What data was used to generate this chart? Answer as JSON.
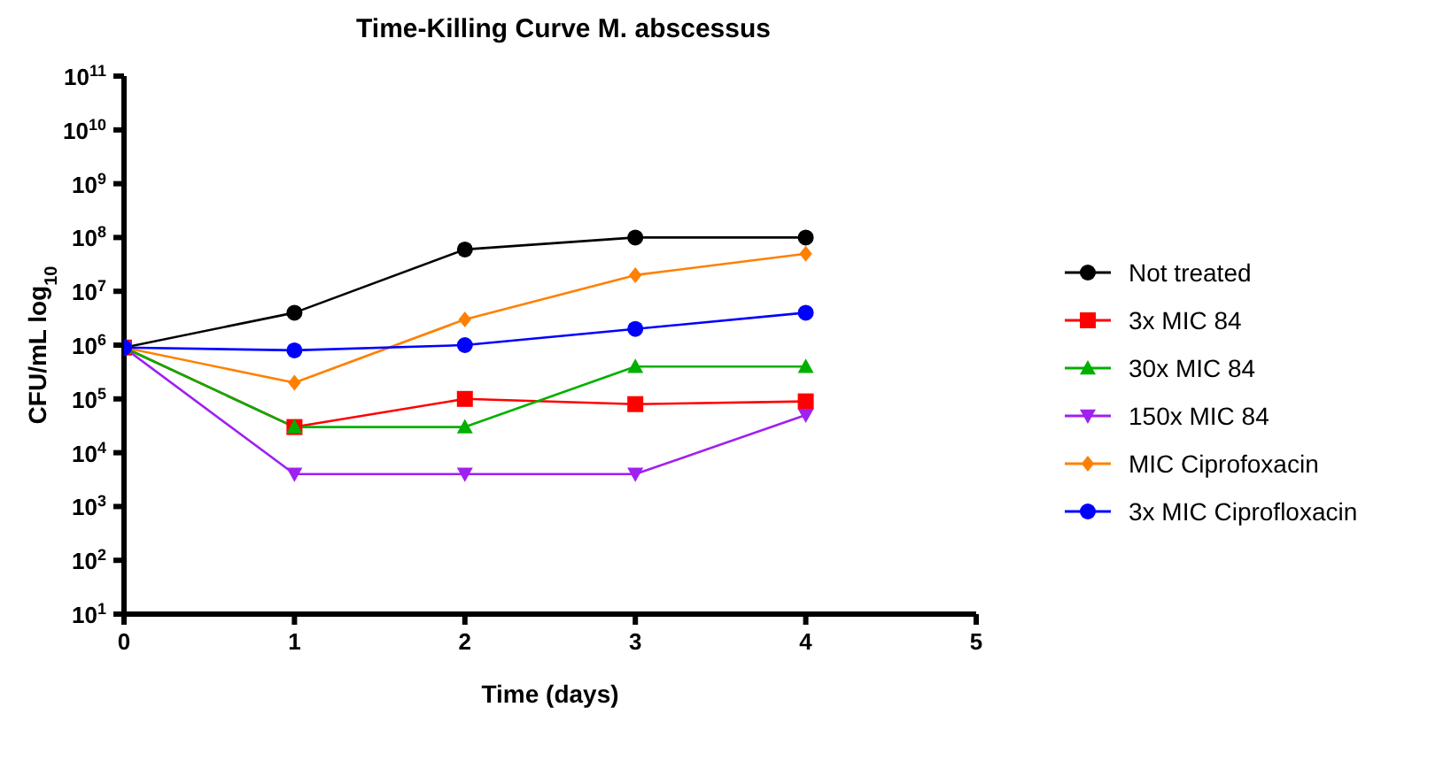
{
  "chart_data": {
    "type": "line",
    "title": "Time-Killing Curve M. abscessus",
    "xlabel": "Time (days)",
    "ylabel": "CFU/mL log$_{10}$",
    "x": [
      0,
      1,
      2,
      3,
      4
    ],
    "xlim": [
      0,
      5
    ],
    "xticks": [
      0,
      1,
      2,
      3,
      4,
      5
    ],
    "log": true,
    "ylim": [
      10,
      100000000000
    ],
    "yticks": [
      {
        "value": 10,
        "label": "10$^{1}$"
      },
      {
        "value": 100,
        "label": "10$^{2}$"
      },
      {
        "value": 1000,
        "label": "10$^{3}$"
      },
      {
        "value": 10000,
        "label": "10$^{4}$"
      },
      {
        "value": 100000,
        "label": "10$^{5}$"
      },
      {
        "value": 1000000,
        "label": "10$^{6}$"
      },
      {
        "value": 10000000,
        "label": "10$^{7}$"
      },
      {
        "value": 100000000,
        "label": "10$^{8}$"
      },
      {
        "value": 1000000000,
        "label": "10$^{9}$"
      },
      {
        "value": 10000000000,
        "label": "10$^{10}$"
      },
      {
        "value": 100000000000,
        "label": "10$^{11}$"
      }
    ],
    "grid": false,
    "legend": "right",
    "line_style": "solid",
    "series": [
      {
        "name": "Not treated",
        "color": "#000000",
        "marker": "circle",
        "values": [
          900000,
          4000000,
          60000000,
          100000000,
          100000000
        ]
      },
      {
        "name": "3x MIC 84",
        "color": "#ff0000",
        "marker": "square",
        "values": [
          900000,
          30000,
          100000,
          80000,
          90000
        ]
      },
      {
        "name": "30x MIC 84",
        "color": "#00b000",
        "marker": "triangle",
        "values": [
          900000,
          30000,
          30000,
          400000,
          400000
        ]
      },
      {
        "name": "150x MIC 84",
        "color": "#a020f0",
        "marker": "triangle-down",
        "values": [
          900000,
          4000,
          4000,
          4000,
          50000
        ]
      },
      {
        "name": "MIC Ciprofoxacin",
        "color": "#ff8000",
        "marker": "diamond",
        "values": [
          900000,
          200000,
          3000000,
          20000000,
          50000000
        ]
      },
      {
        "name": "3x MIC Ciprofloxacin",
        "color": "#0000ff",
        "marker": "circle",
        "values": [
          900000,
          800000,
          1000000,
          2000000,
          4000000
        ]
      }
    ]
  }
}
